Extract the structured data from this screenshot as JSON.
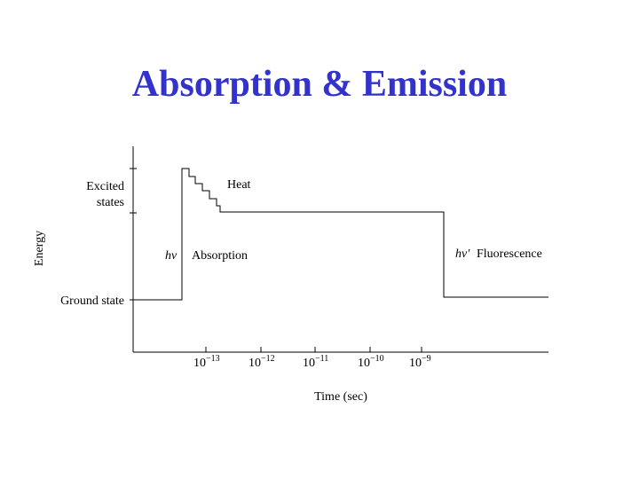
{
  "header": {
    "title": "Absorption & Emission"
  },
  "diagram": {
    "y_axis_label": "Energy",
    "excited_label": [
      "Excited",
      "states"
    ],
    "ground_label": "Ground state",
    "heat_label": "Heat",
    "absorption": {
      "symbol": "hν",
      "label": "Absorption"
    },
    "fluorescence": {
      "symbol": "hν′",
      "label": "Fluorescence"
    },
    "x_ticks": [
      {
        "base": "10",
        "exponent": "−13"
      },
      {
        "base": "10",
        "exponent": "−12"
      },
      {
        "base": "10",
        "exponent": "−11"
      },
      {
        "base": "10",
        "exponent": "−10"
      },
      {
        "base": "10",
        "exponent": "−9"
      }
    ],
    "x_axis_label": "Time (sec)"
  }
}
